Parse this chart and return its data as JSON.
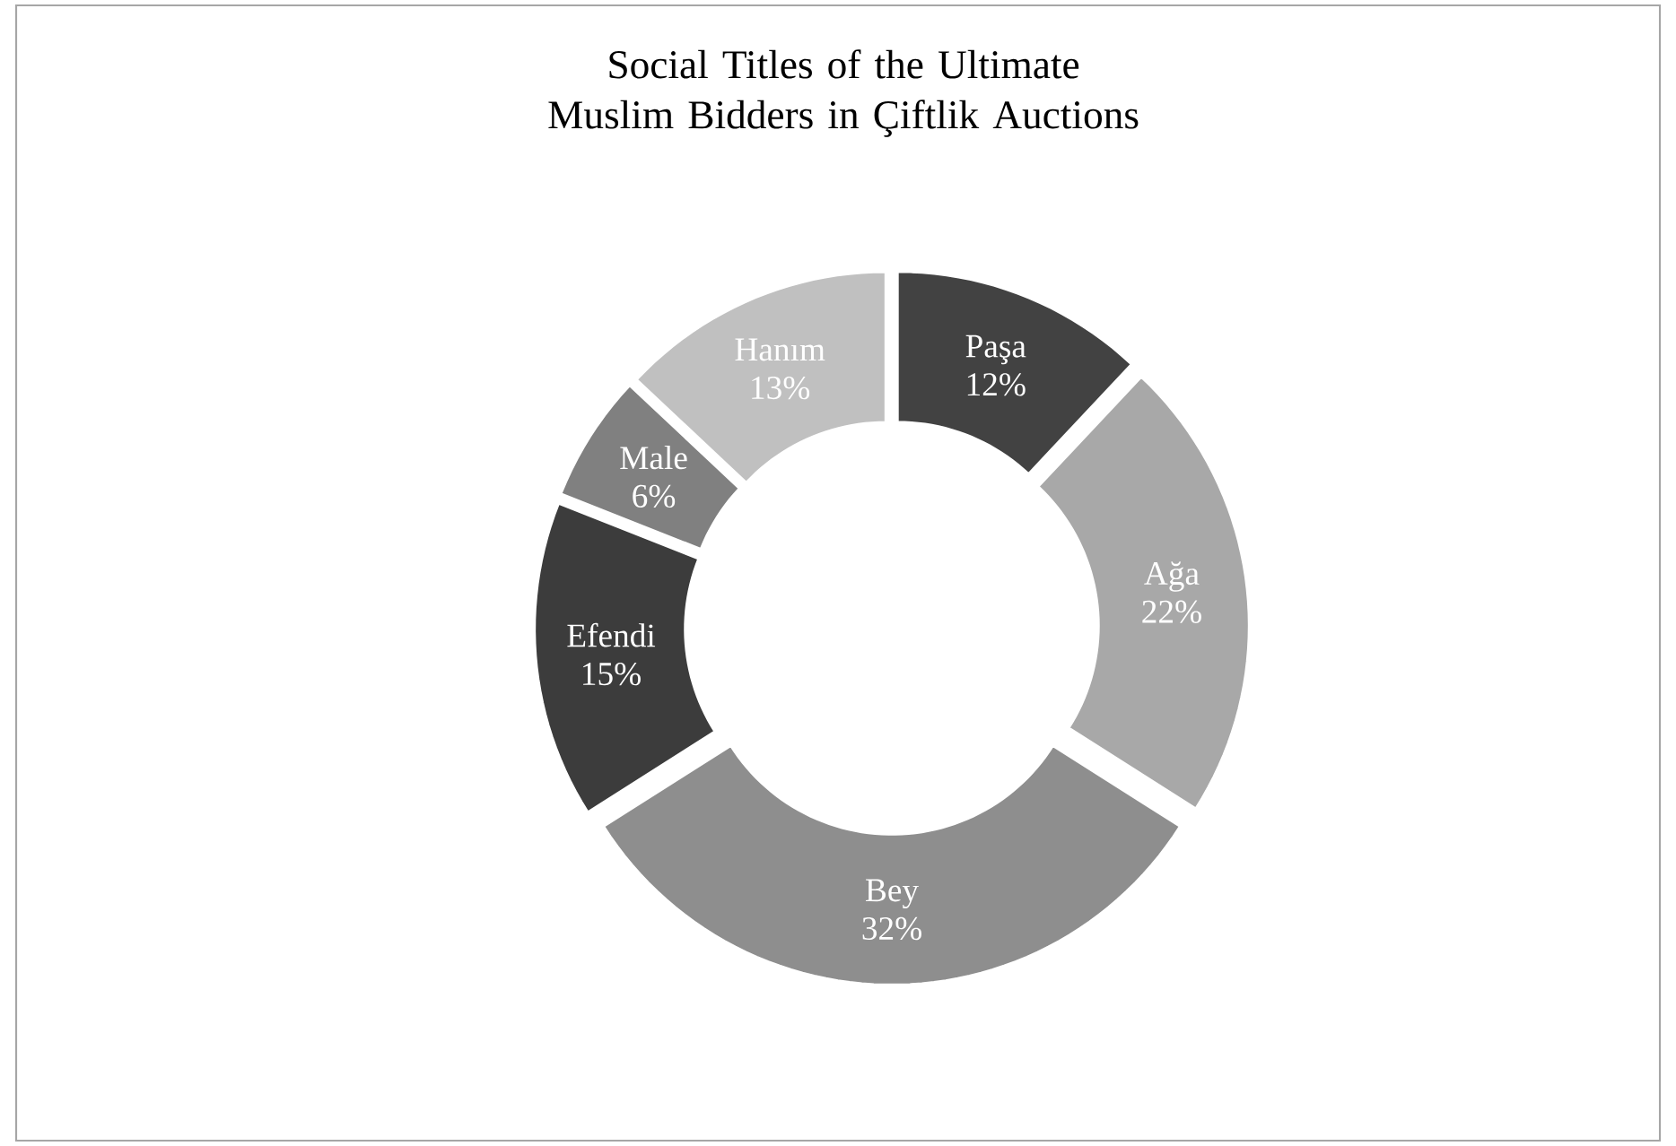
{
  "chart_data": {
    "type": "donut",
    "title": "Social Titles of the Ultimate Muslim Bidders in Çiftlik Auctions",
    "categories": [
      "Paşa",
      "Ağa",
      "Bey",
      "Efendi",
      "Male",
      "Hanım"
    ],
    "values": [
      12,
      22,
      32,
      15,
      6,
      13
    ],
    "value_labels": [
      "12%",
      "22%",
      "32%",
      "15%",
      "6%",
      "13%"
    ],
    "colors": [
      "#424242",
      "#a8a8a8",
      "#8e8e8e",
      "#3c3c3c",
      "#808080",
      "#c0c0c0"
    ]
  }
}
